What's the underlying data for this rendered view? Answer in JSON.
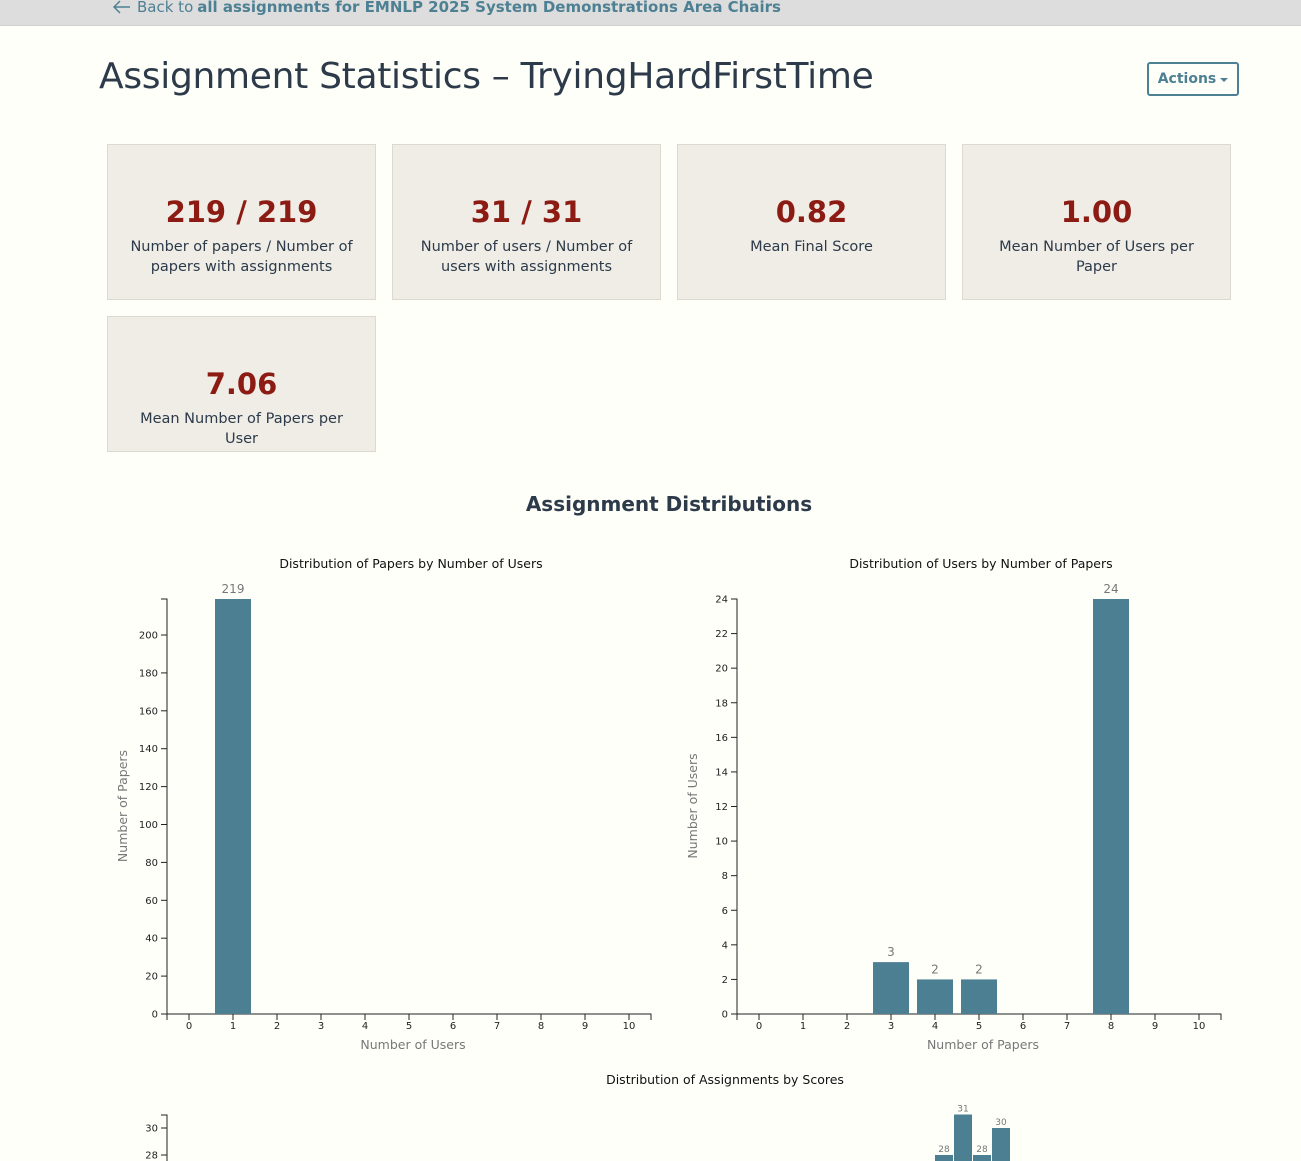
{
  "nav": {
    "back_prefix": "Back to",
    "back_link": "all assignments for EMNLP 2025 System Demonstrations Area Chairs"
  },
  "header": {
    "title": "Assignment Statistics – TryingHardFirstTime",
    "actions_label": "Actions"
  },
  "stats": [
    {
      "value": "219 / 219",
      "label": "Number of papers / Number of papers with assignments"
    },
    {
      "value": "31 / 31",
      "label": "Number of users / Number of users with assignments"
    },
    {
      "value": "0.82",
      "label": "Mean Final Score"
    },
    {
      "value": "1.00",
      "label": "Mean Number of Users per Paper"
    },
    {
      "value": "7.06",
      "label": "Mean Number of Papers per User"
    }
  ],
  "section": {
    "distributions_title": "Assignment Distributions"
  },
  "colors": {
    "accent": "#4d8093",
    "bar": "#4d7f93",
    "stat_value": "#8c1b13",
    "card_bg": "#efede6",
    "topbar_bg": "#dddddd"
  },
  "icons": {
    "back": "arrow-left-icon",
    "actions": "caret-down-icon"
  },
  "chart_data": [
    {
      "type": "bar",
      "title": "Distribution of Papers by Number of Users",
      "xlabel": "Number of Users",
      "ylabel": "Number of Papers",
      "categories": [
        0,
        1,
        2,
        3,
        4,
        5,
        6,
        7,
        8,
        9,
        10
      ],
      "values": [
        0,
        219,
        0,
        0,
        0,
        0,
        0,
        0,
        0,
        0,
        0
      ],
      "yticks": [
        0,
        20,
        40,
        60,
        80,
        100,
        120,
        140,
        160,
        180,
        200
      ],
      "ylim": [
        0,
        219
      ]
    },
    {
      "type": "bar",
      "title": "Distribution of Users by Number of Papers",
      "xlabel": "Number of Papers",
      "ylabel": "Number of Users",
      "categories": [
        0,
        1,
        2,
        3,
        4,
        5,
        6,
        7,
        8,
        9,
        10
      ],
      "values": [
        0,
        0,
        0,
        3,
        2,
        2,
        0,
        0,
        24,
        0,
        0
      ],
      "yticks": [
        0,
        2,
        4,
        6,
        8,
        10,
        12,
        14,
        16,
        18,
        20,
        22,
        24
      ],
      "ylim": [
        0,
        24
      ]
    },
    {
      "type": "bar",
      "title": "Distribution of Assignments by Scores",
      "visible_yticks": [
        28,
        30
      ],
      "visible_bar_labels": [
        28,
        31,
        28,
        30
      ]
    }
  ]
}
